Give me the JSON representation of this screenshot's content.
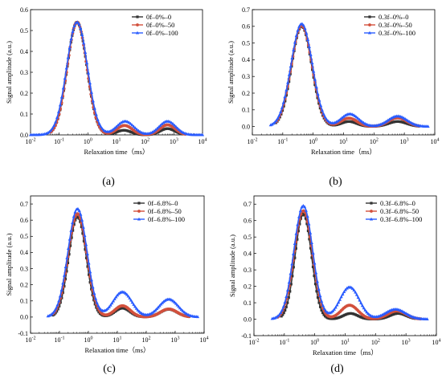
{
  "colors": {
    "series0": "#333333",
    "series50": "#d2503c",
    "series100": "#2a5cff",
    "axis": "#000000"
  },
  "chart_data": [
    {
      "type": "line",
      "panel_label": "(a)",
      "xlabel": "Relaxation time（ms）",
      "ylabel": "Signal amplitude (a.u.)",
      "x_scale": "log",
      "xlim": [
        0.01,
        10000
      ],
      "ylim": [
        0,
        0.6
      ],
      "x_ticks": [
        0.01,
        0.1,
        1,
        10,
        100,
        1000,
        10000
      ],
      "y_ticks": [
        0.0,
        0.1,
        0.2,
        0.3,
        0.4,
        0.5,
        0.6
      ],
      "y_tick_labels": [
        "0.0",
        "0.1",
        "0.2",
        "0.3",
        "0.4",
        "0.5",
        "0.6"
      ],
      "legend_position": "top-right",
      "series": [
        {
          "name": "0f–0%–0",
          "color": "#333333",
          "marker": "square",
          "peaks": [
            {
              "x": 0.42,
              "y": 0.54,
              "w": 0.34
            },
            {
              "x": 18,
              "y": 0.022,
              "w": 0.26
            },
            {
              "x": 600,
              "y": 0.03,
              "w": 0.26
            }
          ],
          "x_range": [
            0.05,
            2000
          ]
        },
        {
          "name": "0f–0%–50",
          "color": "#d2503c",
          "marker": "circle",
          "peaks": [
            {
              "x": 0.42,
              "y": 0.54,
              "w": 0.34
            },
            {
              "x": 19,
              "y": 0.045,
              "w": 0.27
            },
            {
              "x": 600,
              "y": 0.048,
              "w": 0.27
            }
          ],
          "x_range": [
            0.05,
            2500
          ]
        },
        {
          "name": "0f–0%–100",
          "color": "#2a5cff",
          "marker": "triangle",
          "peaks": [
            {
              "x": 0.42,
              "y": 0.54,
              "w": 0.36
            },
            {
              "x": 20,
              "y": 0.065,
              "w": 0.3
            },
            {
              "x": 600,
              "y": 0.065,
              "w": 0.29
            }
          ],
          "x_range": [
            0.01,
            10000
          ]
        }
      ]
    },
    {
      "type": "line",
      "panel_label": "(b)",
      "xlabel": "Relaxation time（ms）",
      "ylabel": "Signal amplitude (a.u.)",
      "x_scale": "log",
      "xlim": [
        0.01,
        10000
      ],
      "ylim": [
        -0.05,
        0.7
      ],
      "x_ticks": [
        0.01,
        0.1,
        1,
        10,
        100,
        1000,
        10000
      ],
      "y_ticks": [
        0.0,
        0.1,
        0.2,
        0.3,
        0.4,
        0.5,
        0.6,
        0.7
      ],
      "y_tick_labels": [
        "0.0",
        "0.1",
        "0.2",
        "0.3",
        "0.4",
        "0.5",
        "0.6",
        "0.7"
      ],
      "legend_position": "top-right",
      "series": [
        {
          "name": "0.3f–0%–0",
          "color": "#333333",
          "marker": "square",
          "peaks": [
            {
              "x": 0.42,
              "y": 0.6,
              "w": 0.33
            },
            {
              "x": 15,
              "y": 0.03,
              "w": 0.26
            },
            {
              "x": 600,
              "y": 0.03,
              "w": 0.3
            }
          ],
          "x_range": [
            0.06,
            3000
          ]
        },
        {
          "name": "0.3f–0%–50",
          "color": "#d2503c",
          "marker": "circle",
          "peaks": [
            {
              "x": 0.42,
              "y": 0.605,
              "w": 0.34
            },
            {
              "x": 15,
              "y": 0.05,
              "w": 0.27
            },
            {
              "x": 600,
              "y": 0.052,
              "w": 0.3
            }
          ],
          "x_range": [
            0.06,
            3000
          ]
        },
        {
          "name": "0.3f–0%–100",
          "color": "#2a5cff",
          "marker": "triangle",
          "peaks": [
            {
              "x": 0.42,
              "y": 0.615,
              "w": 0.35
            },
            {
              "x": 16,
              "y": 0.075,
              "w": 0.29
            },
            {
              "x": 600,
              "y": 0.062,
              "w": 0.31
            }
          ],
          "x_range": [
            0.04,
            6000
          ]
        }
      ]
    },
    {
      "type": "line",
      "panel_label": "(c)",
      "xlabel": "Relaxation time（ms）",
      "ylabel": "Signal amplitude (a.u.)",
      "x_scale": "log",
      "xlim": [
        0.01,
        10000
      ],
      "ylim": [
        -0.1,
        0.75
      ],
      "x_ticks": [
        0.01,
        0.1,
        1,
        10,
        100,
        1000,
        10000
      ],
      "y_ticks": [
        -0.1,
        0.0,
        0.1,
        0.2,
        0.3,
        0.4,
        0.5,
        0.6,
        0.7
      ],
      "y_tick_labels": [
        "-0.1",
        "0.0",
        "0.1",
        "0.2",
        "0.3",
        "0.4",
        "0.5",
        "0.6",
        "0.7"
      ],
      "legend_position": "top-right",
      "series": [
        {
          "name": "0f–6.8%–0",
          "color": "#333333",
          "marker": "square",
          "peaks": [
            {
              "x": 0.42,
              "y": 0.62,
              "w": 0.3
            },
            {
              "x": 15,
              "y": 0.055,
              "w": 0.26
            },
            {
              "x": 600,
              "y": 0.048,
              "w": 0.29
            }
          ],
          "x_range": [
            0.06,
            3000
          ]
        },
        {
          "name": "0f–6.8%–50",
          "color": "#d2503c",
          "marker": "circle",
          "peaks": [
            {
              "x": 0.42,
              "y": 0.64,
              "w": 0.32
            },
            {
              "x": 15,
              "y": 0.07,
              "w": 0.27
            },
            {
              "x": 600,
              "y": 0.05,
              "w": 0.29
            }
          ],
          "x_range": [
            0.06,
            3000
          ]
        },
        {
          "name": "0f–6.8%–100",
          "color": "#2a5cff",
          "marker": "triangle",
          "peaks": [
            {
              "x": 0.42,
              "y": 0.67,
              "w": 0.33
            },
            {
              "x": 15,
              "y": 0.155,
              "w": 0.33
            },
            {
              "x": 600,
              "y": 0.11,
              "w": 0.33
            }
          ],
          "x_range": [
            0.04,
            6000
          ]
        }
      ]
    },
    {
      "type": "line",
      "panel_label": "(d)",
      "xlabel": "Relaxation time（ms）",
      "ylabel": "Signal amplitude (a.u.)",
      "x_scale": "log",
      "xlim": [
        0.01,
        10000
      ],
      "ylim": [
        -0.1,
        0.75
      ],
      "x_ticks": [
        0.01,
        0.1,
        1,
        10,
        100,
        1000,
        10000
      ],
      "y_ticks": [
        -0.1,
        0.0,
        0.1,
        0.2,
        0.3,
        0.4,
        0.5,
        0.6,
        0.7
      ],
      "y_tick_labels": [
        "-0.1",
        "0.0",
        "0.1",
        "0.2",
        "0.3",
        "0.4",
        "0.5",
        "0.6",
        "0.7"
      ],
      "legend_position": "top-right",
      "series": [
        {
          "name": "0.3f–6.8%–0",
          "color": "#333333",
          "marker": "square",
          "peaks": [
            {
              "x": 0.42,
              "y": 0.64,
              "w": 0.27
            },
            {
              "x": 15,
              "y": 0.035,
              "w": 0.24
            },
            {
              "x": 550,
              "y": 0.035,
              "w": 0.27
            }
          ],
          "x_range": [
            0.08,
            2000
          ]
        },
        {
          "name": "0.3f–6.8%–50",
          "color": "#d2503c",
          "marker": "circle",
          "peaks": [
            {
              "x": 0.42,
              "y": 0.66,
              "w": 0.3
            },
            {
              "x": 14,
              "y": 0.085,
              "w": 0.28
            },
            {
              "x": 500,
              "y": 0.05,
              "w": 0.3
            }
          ],
          "x_range": [
            0.06,
            3000
          ]
        },
        {
          "name": "0.3f–6.8%–100",
          "color": "#2a5cff",
          "marker": "triangle",
          "peaks": [
            {
              "x": 0.42,
              "y": 0.69,
              "w": 0.31
            },
            {
              "x": 14,
              "y": 0.195,
              "w": 0.32
            },
            {
              "x": 450,
              "y": 0.06,
              "w": 0.33
            }
          ],
          "x_range": [
            0.04,
            5000
          ]
        }
      ]
    }
  ]
}
